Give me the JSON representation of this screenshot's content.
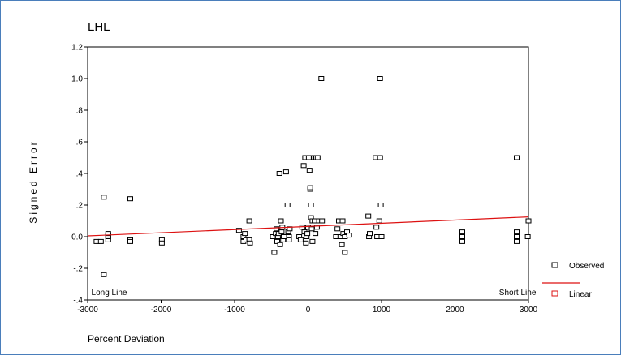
{
  "chart_data": {
    "type": "scatter",
    "title": "LHL",
    "xlabel": "Percent Deviation",
    "ylabel": "Signed Error",
    "xlim": [
      -3000,
      3000
    ],
    "ylim": [
      -0.4,
      1.2
    ],
    "xticks": [
      -3000,
      -2000,
      -1000,
      0,
      1000,
      2000,
      3000
    ],
    "xtick_labels": [
      "-3000",
      "-2000",
      "-1000",
      "0",
      "1000",
      "2000",
      "3000"
    ],
    "yticks": [
      -0.4,
      -0.2,
      0.0,
      0.2,
      0.4,
      0.6,
      0.8,
      1.0,
      1.2
    ],
    "ytick_labels": [
      "-.4",
      "-.2",
      "0.0",
      ".2",
      ".4",
      ".6",
      ".8",
      "1.0",
      "1.2"
    ],
    "annotations": [
      {
        "text": "Long Line",
        "x": -2950,
        "y": -0.37
      },
      {
        "text": "Short Line",
        "x": 2600,
        "y": -0.37
      }
    ],
    "legend": {
      "placement": "right",
      "entries": [
        {
          "label": "Observed",
          "marker": "square",
          "color": "#000000"
        },
        {
          "label": "Linear",
          "marker": "line",
          "color": "#dd1111"
        }
      ]
    },
    "series": [
      {
        "name": "Observed",
        "type": "scatter",
        "marker": "square",
        "color": "#000000",
        "points": [
          [
            -2880,
            -0.03
          ],
          [
            -2820,
            -0.03
          ],
          [
            -2780,
            0.25
          ],
          [
            -2780,
            -0.24
          ],
          [
            -2720,
            -0.02
          ],
          [
            -2720,
            0.0
          ],
          [
            -2720,
            0.01
          ],
          [
            -2720,
            0.02
          ],
          [
            -2420,
            0.24
          ],
          [
            -2420,
            -0.02
          ],
          [
            -2420,
            -0.03
          ],
          [
            -1990,
            -0.02
          ],
          [
            -1990,
            -0.04
          ],
          [
            -940,
            0.04
          ],
          [
            -880,
            0.0
          ],
          [
            -880,
            -0.03
          ],
          [
            -860,
            0.02
          ],
          [
            -840,
            -0.02
          ],
          [
            -800,
            0.1
          ],
          [
            -800,
            -0.02
          ],
          [
            -790,
            -0.04
          ],
          [
            -480,
            0.0
          ],
          [
            -460,
            -0.1
          ],
          [
            -440,
            0.02
          ],
          [
            -430,
            0.05
          ],
          [
            -420,
            -0.03
          ],
          [
            -410,
            0.0
          ],
          [
            -400,
            0.02
          ],
          [
            -390,
            0.4
          ],
          [
            -380,
            -0.05
          ],
          [
            -370,
            0.1
          ],
          [
            -360,
            0.03
          ],
          [
            -350,
            0.06
          ],
          [
            -340,
            -0.02
          ],
          [
            -330,
            0.0
          ],
          [
            -320,
            0.0
          ],
          [
            -300,
            0.41
          ],
          [
            -280,
            0.2
          ],
          [
            -270,
            0.03
          ],
          [
            -260,
            0.0
          ],
          [
            -260,
            -0.02
          ],
          [
            -250,
            0.05
          ],
          [
            -120,
            0.0
          ],
          [
            -100,
            -0.02
          ],
          [
            -80,
            0.06
          ],
          [
            -60,
            0.45
          ],
          [
            -50,
            0.03
          ],
          [
            -40,
            0.5
          ],
          [
            -30,
            -0.04
          ],
          [
            -20,
            0.0
          ],
          [
            -10,
            0.02
          ],
          [
            0,
            0.06
          ],
          [
            10,
            0.5
          ],
          [
            20,
            0.42
          ],
          [
            30,
            0.3
          ],
          [
            30,
            0.31
          ],
          [
            40,
            0.2
          ],
          [
            40,
            0.12
          ],
          [
            50,
            0.05
          ],
          [
            60,
            -0.03
          ],
          [
            60,
            0.1
          ],
          [
            80,
            0.5
          ],
          [
            90,
            0.1
          ],
          [
            100,
            0.02
          ],
          [
            110,
            0.5
          ],
          [
            120,
            0.06
          ],
          [
            130,
            0.5
          ],
          [
            150,
            0.1
          ],
          [
            180,
            1.0
          ],
          [
            190,
            0.1
          ],
          [
            380,
            0.0
          ],
          [
            400,
            0.05
          ],
          [
            420,
            0.1
          ],
          [
            440,
            0.0
          ],
          [
            460,
            -0.05
          ],
          [
            470,
            0.1
          ],
          [
            480,
            0.02
          ],
          [
            500,
            -0.1
          ],
          [
            500,
            0.0
          ],
          [
            530,
            0.03
          ],
          [
            560,
            0.01
          ],
          [
            820,
            0.13
          ],
          [
            830,
            0.0
          ],
          [
            840,
            0.02
          ],
          [
            920,
            0.5
          ],
          [
            930,
            0.06
          ],
          [
            940,
            0.0
          ],
          [
            970,
            0.1
          ],
          [
            980,
            1.0
          ],
          [
            980,
            0.5
          ],
          [
            990,
            0.2
          ],
          [
            1000,
            0.0
          ],
          [
            2100,
            0.03
          ],
          [
            2100,
            0.0
          ],
          [
            2100,
            -0.03
          ],
          [
            2840,
            0.5
          ],
          [
            2840,
            0.03
          ],
          [
            2840,
            0.0
          ],
          [
            2840,
            -0.03
          ],
          [
            2990,
            0.0
          ],
          [
            3000,
            0.1
          ]
        ]
      },
      {
        "name": "Linear",
        "type": "line",
        "color": "#dd1111",
        "x": [
          -3000,
          3000
        ],
        "y": [
          0.005,
          0.125
        ]
      }
    ]
  }
}
